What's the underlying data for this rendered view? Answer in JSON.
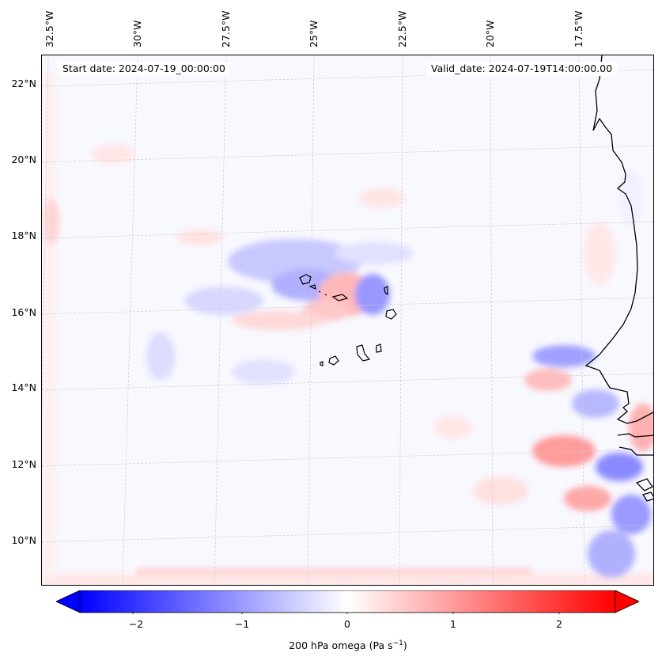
{
  "header": {
    "start_date": "Start date: 2024-07-19_00:00:00",
    "valid_date": "Valid_date: 2024-07-19T14:00:00.00"
  },
  "map": {
    "lon_labels": [
      "32.5°W",
      "30°W",
      "27.5°W",
      "25°W",
      "22.5°W",
      "20°W",
      "17.5°W"
    ],
    "lat_labels": [
      "22°N",
      "20°N",
      "18°N",
      "16°N",
      "14°N",
      "12°N",
      "10°N"
    ],
    "field": "200 hPa omega",
    "coastline_color": "#000000",
    "gridline_color": "#cccccc"
  },
  "colorbar": {
    "label_text": "200 hPa omega (Pa s",
    "label_sup": "−1",
    "label_close": ")",
    "ticks": [
      "−2",
      "−1",
      "0",
      "1",
      "2"
    ],
    "range": [
      -2.5,
      2.5
    ],
    "negative_color": "#0000ff",
    "zero_color": "#ffffff",
    "positive_color": "#ff0000",
    "extend": "both"
  }
}
